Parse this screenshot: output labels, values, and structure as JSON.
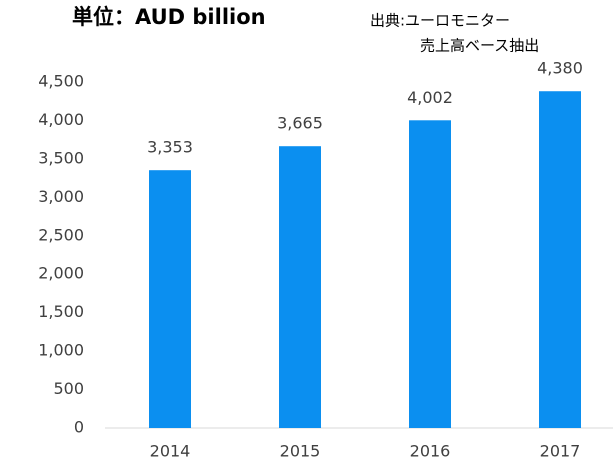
{
  "chart_data": {
    "type": "bar",
    "title": "単位：AUD  billion",
    "annotation": [
      "出典:ユーロモニター",
      "売上高ベース抽出"
    ],
    "categories": [
      "2014",
      "2015",
      "2016",
      "2017"
    ],
    "values": [
      3353,
      3665,
      4002,
      4380
    ],
    "value_labels": [
      "3,353",
      "3,665",
      "4,002",
      "4,380"
    ],
    "color": "#0b8ff0",
    "ylim": [
      0,
      4500
    ],
    "yticks": [
      0,
      500,
      {
        "value": 1000,
        "label": "1,000"
      },
      {
        "value": 1500,
        "label": "1,500"
      },
      {
        "value": 2000,
        "label": "2,000"
      },
      {
        "value": 2500,
        "label": "2,500"
      },
      {
        "value": 3000,
        "label": "3,000"
      },
      {
        "value": 3500,
        "label": "3,500"
      },
      {
        "value": 4000,
        "label": "4,000"
      },
      {
        "value": 4500,
        "label": "4,500"
      }
    ],
    "grid": false
  }
}
